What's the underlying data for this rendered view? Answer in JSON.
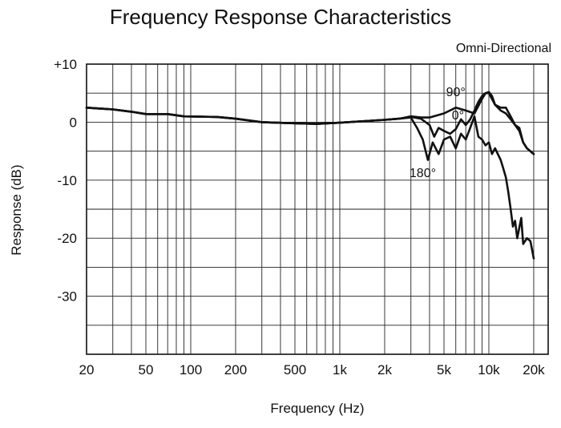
{
  "chart_data": {
    "type": "line",
    "title": "Frequency Response Characteristics",
    "subtitle": "Omni-Directional",
    "xlabel": "Frequency (Hz)",
    "ylabel": "Response (dB)",
    "xscale": "log",
    "xlim": [
      20,
      25000
    ],
    "ylim": [
      -40,
      10
    ],
    "grid": true,
    "x_ticks": [
      20,
      50,
      100,
      200,
      500,
      1000,
      2000,
      5000,
      10000,
      20000
    ],
    "x_tick_labels": [
      "20",
      "50",
      "100",
      "200",
      "500",
      "1k",
      "2k",
      "5k",
      "10k",
      "20k"
    ],
    "y_ticks": [
      10,
      0,
      -10,
      -20,
      -30
    ],
    "y_tick_labels": [
      "+10",
      "0",
      "-10",
      "-20",
      "-30"
    ],
    "series": [
      {
        "name": "0°",
        "points": [
          [
            20,
            2.5
          ],
          [
            30,
            2.2
          ],
          [
            40,
            1.8
          ],
          [
            50,
            1.4
          ],
          [
            70,
            1.4
          ],
          [
            90,
            1.0
          ],
          [
            150,
            0.9
          ],
          [
            200,
            0.6
          ],
          [
            300,
            0.0
          ],
          [
            500,
            -0.2
          ],
          [
            700,
            -0.3
          ],
          [
            1000,
            -0.1
          ],
          [
            1500,
            0.2
          ],
          [
            2000,
            0.4
          ],
          [
            2500,
            0.6
          ],
          [
            3000,
            0.9
          ],
          [
            3500,
            0.6
          ],
          [
            4000,
            -0.5
          ],
          [
            4300,
            -2.5
          ],
          [
            4600,
            -1.0
          ],
          [
            5000,
            -1.5
          ],
          [
            5500,
            -2.0
          ],
          [
            6000,
            -1.2
          ],
          [
            6500,
            0.5
          ],
          [
            7000,
            -0.5
          ],
          [
            7500,
            0.5
          ],
          [
            8000,
            2.0
          ],
          [
            8500,
            3.5
          ],
          [
            9000,
            4.5
          ],
          [
            9500,
            5.0
          ],
          [
            10000,
            5.2
          ],
          [
            10500,
            4.5
          ],
          [
            11000,
            3.0
          ],
          [
            12000,
            2.0
          ],
          [
            13000,
            1.5
          ],
          [
            14000,
            0.5
          ],
          [
            15000,
            -0.5
          ],
          [
            16000,
            -1.0
          ],
          [
            17000,
            -3.5
          ],
          [
            18000,
            -4.5
          ],
          [
            20000,
            -5.5
          ]
        ]
      },
      {
        "name": "90°",
        "points": [
          [
            20,
            2.5
          ],
          [
            30,
            2.2
          ],
          [
            40,
            1.8
          ],
          [
            50,
            1.4
          ],
          [
            70,
            1.4
          ],
          [
            90,
            1.0
          ],
          [
            150,
            0.9
          ],
          [
            200,
            0.6
          ],
          [
            300,
            0.0
          ],
          [
            500,
            -0.2
          ],
          [
            700,
            -0.3
          ],
          [
            1000,
            -0.1
          ],
          [
            1500,
            0.2
          ],
          [
            2000,
            0.4
          ],
          [
            2500,
            0.6
          ],
          [
            3000,
            1.0
          ],
          [
            3500,
            0.8
          ],
          [
            4000,
            0.8
          ],
          [
            5000,
            1.5
          ],
          [
            6000,
            2.5
          ],
          [
            7000,
            2.0
          ],
          [
            8000,
            1.5
          ],
          [
            9000,
            4.0
          ],
          [
            9500,
            5.0
          ],
          [
            10000,
            5.0
          ],
          [
            11000,
            3.0
          ],
          [
            12000,
            2.5
          ],
          [
            13000,
            2.5
          ],
          [
            14000,
            1.0
          ],
          [
            15000,
            -0.5
          ],
          [
            16000,
            -1.5
          ],
          [
            17000,
            -3.5
          ],
          [
            18000,
            -4.5
          ],
          [
            20000,
            -5.5
          ]
        ]
      },
      {
        "name": "180°",
        "points": [
          [
            20,
            2.5
          ],
          [
            30,
            2.2
          ],
          [
            40,
            1.8
          ],
          [
            50,
            1.4
          ],
          [
            70,
            1.4
          ],
          [
            90,
            1.0
          ],
          [
            150,
            0.9
          ],
          [
            200,
            0.6
          ],
          [
            300,
            0.0
          ],
          [
            500,
            -0.2
          ],
          [
            700,
            -0.3
          ],
          [
            1000,
            -0.1
          ],
          [
            1500,
            0.2
          ],
          [
            2000,
            0.4
          ],
          [
            2500,
            0.6
          ],
          [
            3000,
            0.8
          ],
          [
            3300,
            -1.0
          ],
          [
            3600,
            -3.0
          ],
          [
            3900,
            -6.5
          ],
          [
            4200,
            -3.5
          ],
          [
            4600,
            -5.5
          ],
          [
            5000,
            -3.0
          ],
          [
            5500,
            -2.5
          ],
          [
            6000,
            -4.5
          ],
          [
            6500,
            -2.0
          ],
          [
            7000,
            -3.0
          ],
          [
            7500,
            -1.0
          ],
          [
            8000,
            1.0
          ],
          [
            8500,
            -2.5
          ],
          [
            9000,
            -3.0
          ],
          [
            9500,
            -4.0
          ],
          [
            10000,
            -3.5
          ],
          [
            10500,
            -5.5
          ],
          [
            11000,
            -4.5
          ],
          [
            12000,
            -6.5
          ],
          [
            12500,
            -8.0
          ],
          [
            13000,
            -9.5
          ],
          [
            13500,
            -12.0
          ],
          [
            14000,
            -15.0
          ],
          [
            14500,
            -18.0
          ],
          [
            15000,
            -17.0
          ],
          [
            15500,
            -20.0
          ],
          [
            16500,
            -16.5
          ],
          [
            17000,
            -21.0
          ],
          [
            18000,
            -20.0
          ],
          [
            19000,
            -20.5
          ],
          [
            20000,
            -23.5
          ]
        ]
      }
    ],
    "annotations": [
      {
        "text": "90°",
        "x": 6000,
        "y": 4.5
      },
      {
        "text": "0°",
        "x": 6200,
        "y": 0.5
      },
      {
        "text": "180°",
        "x": 3600,
        "y": -9.5
      }
    ]
  }
}
